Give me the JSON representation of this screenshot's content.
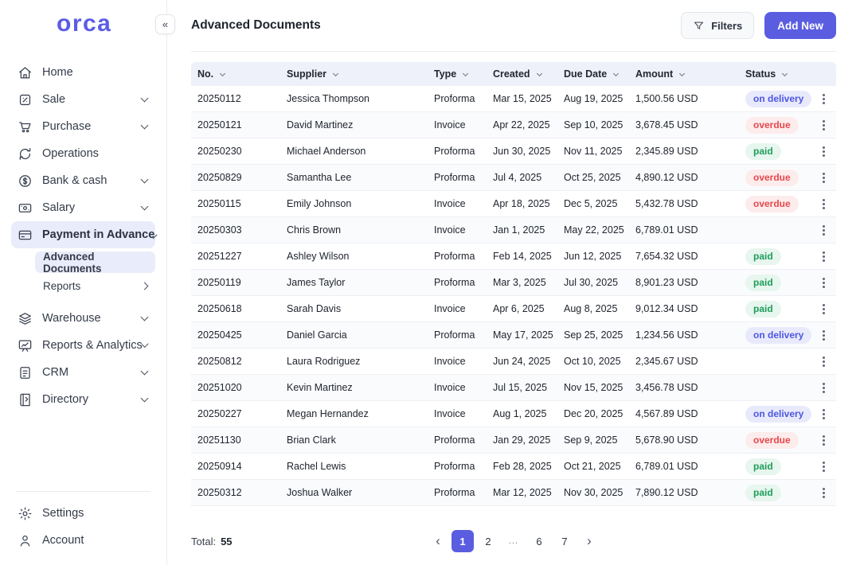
{
  "app": {
    "logo_text": "orca",
    "accent_color": "#5a5de0"
  },
  "sidebar": {
    "collapse_glyph": "«",
    "items": [
      {
        "label": "Home",
        "icon": "home-icon"
      },
      {
        "label": "Sale",
        "icon": "sale-icon",
        "expandable": true
      },
      {
        "label": "Purchase",
        "icon": "purchase-icon",
        "expandable": true
      },
      {
        "label": "Operations",
        "icon": "operations-icon"
      },
      {
        "label": "Bank & cash",
        "icon": "bank-icon",
        "expandable": true
      },
      {
        "label": "Salary",
        "icon": "salary-icon",
        "expandable": true
      },
      {
        "label": "Payment in Advance",
        "icon": "payment-icon",
        "expandable": true,
        "expanded": true,
        "active": true
      },
      {
        "label": "Warehouse",
        "icon": "warehouse-icon",
        "expandable": true
      },
      {
        "label": "Reports & Analytics",
        "icon": "analytics-icon",
        "expandable": true
      },
      {
        "label": "CRM",
        "icon": "crm-icon",
        "expandable": true
      },
      {
        "label": "Directory",
        "icon": "directory-icon",
        "expandable": true
      }
    ],
    "sub_items": [
      {
        "label": "Advanced Documents",
        "active": true
      },
      {
        "label": "Reports",
        "has_submenu": true
      }
    ],
    "footer_items": [
      {
        "label": "Settings",
        "icon": "gear-icon"
      },
      {
        "label": "Account",
        "icon": "person-icon"
      }
    ]
  },
  "header": {
    "title": "Advanced Documents",
    "filters_label": "Filters",
    "add_new_label": "Add New"
  },
  "table": {
    "columns": [
      "No.",
      "Supplier",
      "Type",
      "Created",
      "Due Date",
      "Amount",
      "Status"
    ],
    "rows": [
      {
        "no": "20250112",
        "supplier": "Jessica Thompson",
        "type": "Proforma",
        "created": "Mar 15, 2025",
        "due_date": "Aug 19, 2025",
        "amount": "1,500.56 USD",
        "status": "on delivery"
      },
      {
        "no": "20250121",
        "supplier": "David Martinez",
        "type": "Invoice",
        "created": "Apr 22, 2025",
        "due_date": "Sep 10, 2025",
        "amount": "3,678.45 USD",
        "status": "overdue"
      },
      {
        "no": "20250230",
        "supplier": "Michael Anderson",
        "type": "Proforma",
        "created": "Jun 30, 2025",
        "due_date": "Nov 11, 2025",
        "amount": "2,345.89 USD",
        "status": "paid"
      },
      {
        "no": "20250829",
        "supplier": "Samantha Lee",
        "type": "Proforma",
        "created": "Jul 4, 2025",
        "due_date": "Oct 25, 2025",
        "amount": "4,890.12 USD",
        "status": "overdue"
      },
      {
        "no": "20250115",
        "supplier": "Emily Johnson",
        "type": "Invoice",
        "created": "Apr 18, 2025",
        "due_date": "Dec 5, 2025",
        "amount": "5,432.78 USD",
        "status": "overdue"
      },
      {
        "no": "20250303",
        "supplier": "Chris Brown",
        "type": "Invoice",
        "created": "Jan 1, 2025",
        "due_date": "May 22, 2025",
        "amount": "6,789.01 USD",
        "status": ""
      },
      {
        "no": "20251227",
        "supplier": "Ashley Wilson",
        "type": "Proforma",
        "created": "Feb 14, 2025",
        "due_date": "Jun 12, 2025",
        "amount": "7,654.32 USD",
        "status": "paid"
      },
      {
        "no": "20250119",
        "supplier": "James Taylor",
        "type": "Proforma",
        "created": "Mar 3, 2025",
        "due_date": "Jul 30, 2025",
        "amount": "8,901.23 USD",
        "status": "paid"
      },
      {
        "no": "20250618",
        "supplier": "Sarah Davis",
        "type": "Invoice",
        "created": "Apr 6, 2025",
        "due_date": "Aug 8, 2025",
        "amount": "9,012.34 USD",
        "status": "paid"
      },
      {
        "no": "20250425",
        "supplier": "Daniel Garcia",
        "type": "Proforma",
        "created": "May 17, 2025",
        "due_date": "Sep 25, 2025",
        "amount": "1,234.56 USD",
        "status": "on delivery"
      },
      {
        "no": "20250812",
        "supplier": "Laura Rodriguez",
        "type": "Invoice",
        "created": "Jun 24, 2025",
        "due_date": "Oct 10, 2025",
        "amount": "2,345.67 USD",
        "status": ""
      },
      {
        "no": "20251020",
        "supplier": "Kevin Martinez",
        "type": "Invoice",
        "created": "Jul 15, 2025",
        "due_date": "Nov 15, 2025",
        "amount": "3,456.78 USD",
        "status": ""
      },
      {
        "no": "20250227",
        "supplier": "Megan Hernandez",
        "type": "Invoice",
        "created": "Aug 1, 2025",
        "due_date": "Dec 20, 2025",
        "amount": "4,567.89 USD",
        "status": "on delivery"
      },
      {
        "no": "20251130",
        "supplier": "Brian Clark",
        "type": "Proforma",
        "created": "Jan 29, 2025",
        "due_date": "Sep 9, 2025",
        "amount": "5,678.90 USD",
        "status": "overdue"
      },
      {
        "no": "20250914",
        "supplier": "Rachel Lewis",
        "type": "Proforma",
        "created": "Feb 28, 2025",
        "due_date": "Oct 21, 2025",
        "amount": "6,789.01 USD",
        "status": "paid"
      },
      {
        "no": "20250312",
        "supplier": "Joshua Walker",
        "type": "Proforma",
        "created": "Mar 12, 2025",
        "due_date": "Nov 30, 2025",
        "amount": "7,890.12 USD",
        "status": "paid"
      }
    ]
  },
  "status_styles": {
    "on delivery": {
      "bg": "#e8eafc",
      "fg": "#4d56e0"
    },
    "overdue": {
      "bg": "#fdecec",
      "fg": "#e5484d"
    },
    "paid": {
      "bg": "#e7f6ee",
      "fg": "#1f9d5b"
    }
  },
  "pagination": {
    "total_label": "Total:",
    "total_value": "55",
    "prev_glyph": "‹",
    "next_glyph": "›",
    "pages": [
      "1",
      "2",
      "...",
      "6",
      "7"
    ],
    "active_page": "1"
  }
}
